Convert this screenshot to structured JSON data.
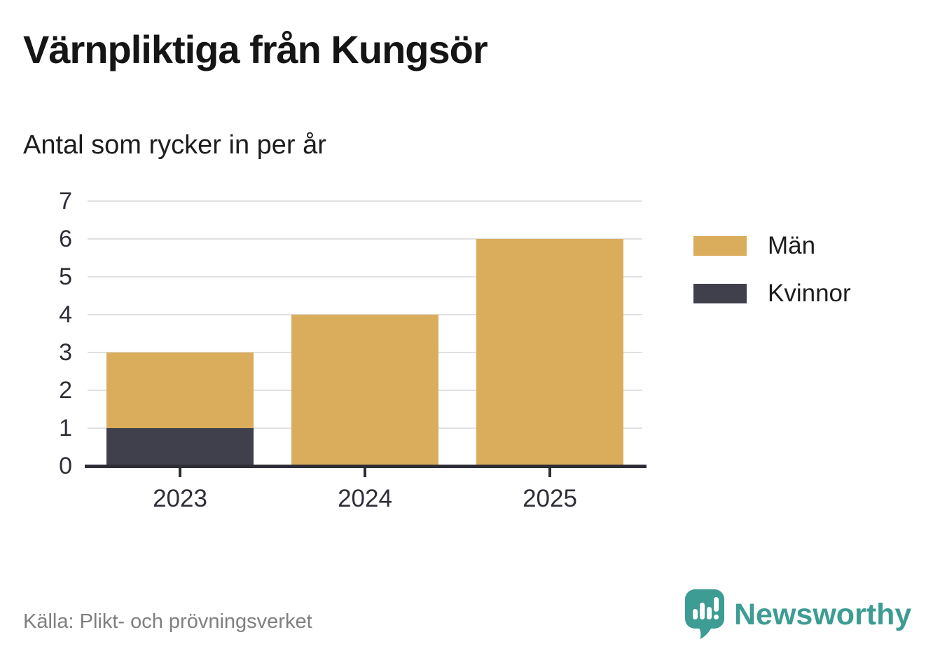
{
  "title": "Värnpliktiga från Kungsör",
  "subtitle": "Antal som rycker in per år",
  "source": "Källa: Plikt- och prövningsverket",
  "brand": {
    "name": "Newsworthy",
    "color": "#3d9c93",
    "icon": "speech-bubble-bar-chart-icon"
  },
  "colors": {
    "men": "#d9ad5c",
    "women": "#403f4c",
    "axis": "#2e2e38",
    "grid": "#e1e1e1",
    "source_text": "#7f7f7f"
  },
  "chart_data": {
    "type": "bar",
    "stacked": true,
    "title": "Värnpliktiga från Kungsör",
    "subtitle": "Antal som rycker in per år",
    "categories": [
      "2023",
      "2024",
      "2025"
    ],
    "series": [
      {
        "name": "Kvinnor",
        "color": "#403f4c",
        "values": [
          1,
          0,
          0
        ]
      },
      {
        "name": "Män",
        "color": "#d9ad5c",
        "values": [
          2,
          4,
          6
        ]
      }
    ],
    "totals": [
      3,
      4,
      6
    ],
    "xlabel": "",
    "ylabel": "",
    "ylim": [
      0,
      7
    ],
    "yticks": [
      0,
      1,
      2,
      3,
      4,
      5,
      6,
      7
    ],
    "grid": true,
    "legend_position": "right",
    "legend": [
      {
        "label": "Män",
        "color": "#d9ad5c"
      },
      {
        "label": "Kvinnor",
        "color": "#403f4c"
      }
    ]
  }
}
